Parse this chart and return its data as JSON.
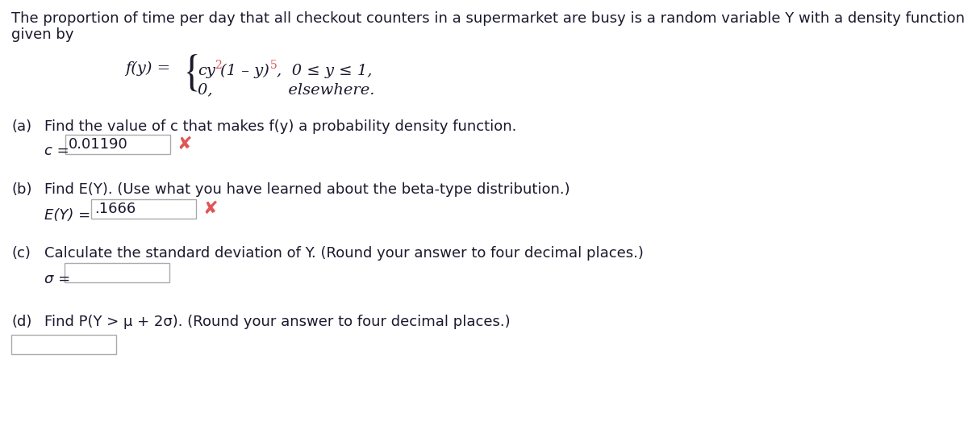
{
  "bg_color": "#ffffff",
  "text_color": "#1a1a2e",
  "red_color": "#e05555",
  "box_edge_color": "#aaaaaa",
  "line1_text": "The proportion of time per day that all checkout counters in a supermarket are busy is a random variable Y with a density function",
  "line2_text": "given by",
  "fy_label": "f(y) =",
  "formula_top": "cy²(1 – y)⁵,  0 ≤ y ≤ 1,",
  "formula_bot": "0,               elsewhere.",
  "part_a_label": "(a)",
  "part_a_text": "Find the value of c that makes f(y) a probability density function.",
  "part_a_eq": "c = ",
  "part_a_val": "0.01190",
  "part_b_label": "(b)",
  "part_b_text": "Find E(Y). (Use what you have learned about the beta-type distribution.)",
  "part_b_eq": "E(Y) = ",
  "part_b_val": ".1666",
  "part_c_label": "(c)",
  "part_c_text": "Calculate the standard deviation of Y. (Round your answer to four decimal places.)",
  "part_c_eq": "σ = ",
  "part_d_label": "(d)",
  "part_d_text": "Find P(Y > μ + 2σ). (Round your answer to four decimal places.)",
  "superscript_color": "#cc2200",
  "font_size": 13.0,
  "formula_font_size": 14.0
}
